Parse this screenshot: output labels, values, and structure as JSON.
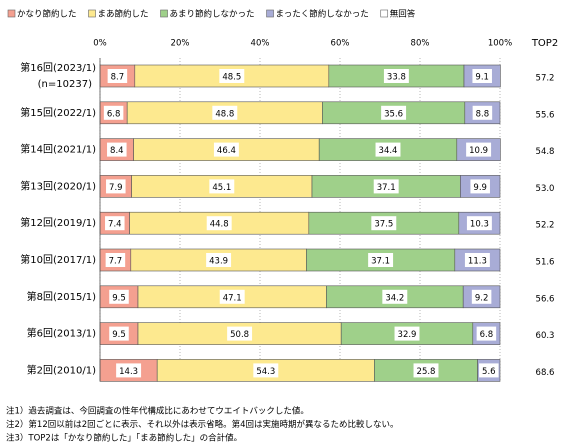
{
  "chart_data": {
    "type": "stacked-barh",
    "categories": [
      "第16回(2023/1)",
      "第15回(2022/1)",
      "第14回(2021/1)",
      "第13回(2020/1)",
      "第12回(2019/1)",
      "第10回(2017/1)",
      "第8回(2015/1)",
      "第6回(2013/1)",
      "第2回(2010/1)"
    ],
    "sample_size": "(n=10237)",
    "series": [
      {
        "name": "かなり節約した",
        "color": "#f4a090",
        "values": [
          8.7,
          6.8,
          8.4,
          7.9,
          7.4,
          7.7,
          9.5,
          9.5,
          14.3
        ]
      },
      {
        "name": "まあ節約した",
        "color": "#fde98f",
        "values": [
          48.5,
          48.8,
          46.4,
          45.1,
          44.8,
          43.9,
          47.1,
          50.8,
          54.3
        ]
      },
      {
        "name": "あまり節約しなかった",
        "color": "#9fd08a",
        "values": [
          33.8,
          35.6,
          34.4,
          37.1,
          37.5,
          37.1,
          34.2,
          32.9,
          25.8
        ]
      },
      {
        "name": "まったく節約しなかった",
        "color": "#a8acd6",
        "values": [
          9.1,
          8.8,
          10.9,
          9.9,
          10.3,
          11.3,
          9.2,
          6.8,
          5.6
        ]
      },
      {
        "name": "無回答",
        "color": "#ffffff",
        "values": [
          0,
          0,
          0,
          0,
          0,
          0,
          0,
          0,
          0
        ]
      }
    ],
    "top2": {
      "name": "TOP2",
      "values": [
        57.2,
        55.6,
        54.8,
        53,
        52.2,
        51.6,
        56.6,
        60.3,
        68.6
      ],
      "value_labels": [
        "57.2",
        "55.6",
        "54.8",
        "53.0",
        "52.2",
        "51.6",
        "56.6",
        "60.3",
        "68.6"
      ]
    },
    "xlim": [
      0,
      100
    ],
    "xticks": [
      {
        "value": 0,
        "label": "0%"
      },
      {
        "value": 20,
        "label": "20%"
      },
      {
        "value": 40,
        "label": "40%"
      },
      {
        "value": 60,
        "label": "60%"
      },
      {
        "value": 80,
        "label": "80%"
      },
      {
        "value": 100,
        "label": "100%"
      }
    ],
    "grid": true,
    "notes": [
      "注1）過去調査は、今回調査の性年代構成比にあわせてウエイトバックした値。",
      "注2）第12回以前は2回ごとに表示、それ以外は表示省略。第4回は実施時期が異なるため比較しない。",
      "注3）TOP2は「かなり節約した」「まあ節約した」の合計値。"
    ]
  }
}
